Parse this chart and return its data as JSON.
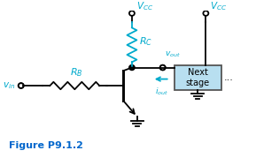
{
  "bg_color": "#ffffff",
  "line_color": "#000000",
  "component_color": "#00aacc",
  "label_color": "#00aacc",
  "figure_label": "Figure P9.1.2",
  "figure_label_color": "#0066cc",
  "figure_label_fontsize": 8,
  "box_facecolor": "#b8dff0",
  "box_edgecolor": "#555555",
  "next_stage_text": "Next\nstage",
  "vcc_label": "$V_{CC}$",
  "rc_label": "$R_C$",
  "rb_label": "$R_B$",
  "vin_label": "$v_{\\mathregular{in}}$",
  "vout_label": "$v_{\\mathregular{out}}$",
  "iout_label": "$i_{\\mathregular{out}}$"
}
